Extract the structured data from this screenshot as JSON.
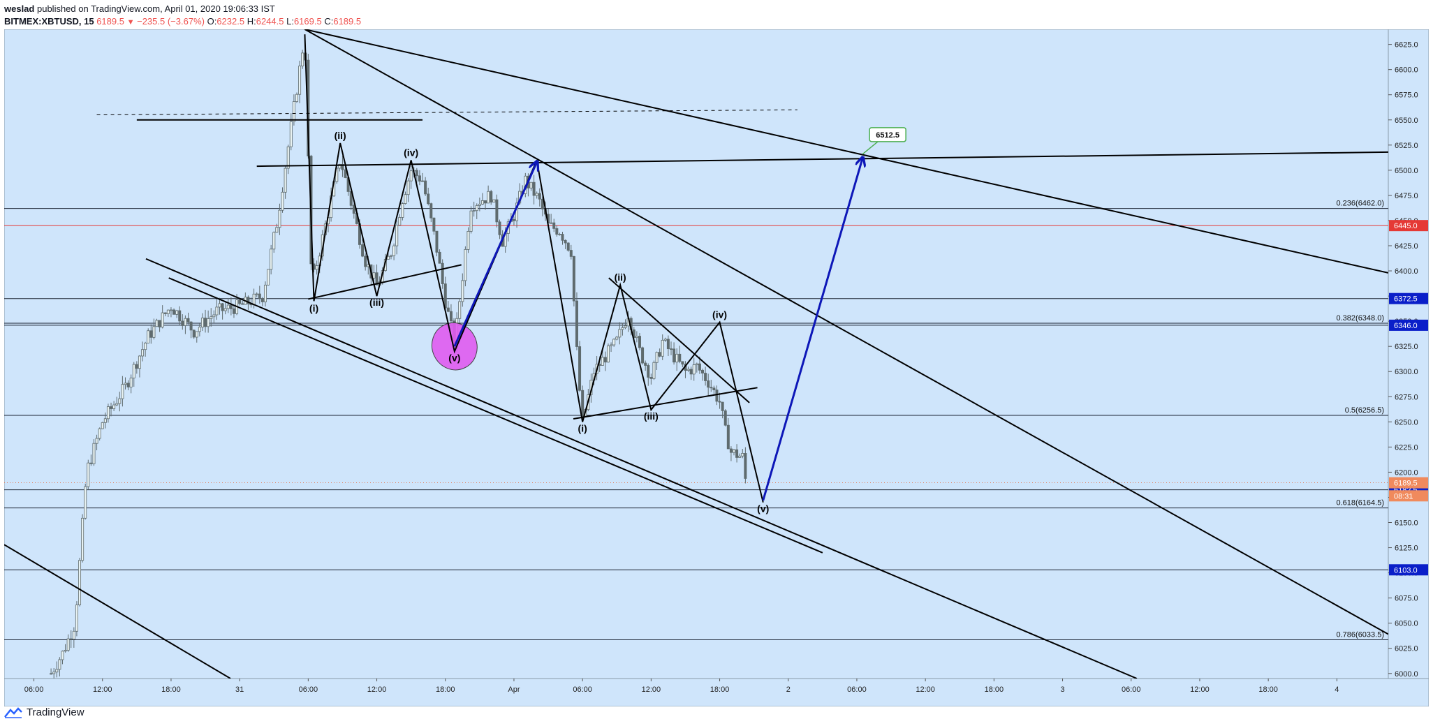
{
  "header": {
    "author": "weslad",
    "published": "published on TradingView.com, April 01, 2020 19:06:33 IST",
    "symbol": "BITMEX:XBTUSD, 15",
    "last": "6189.5",
    "change": "−235.5 (−3.67%)",
    "o_label": "O:",
    "o_val": "6232.5",
    "h_label": "H:",
    "h_val": "6244.5",
    "l_label": "L:",
    "l_val": "6169.5",
    "c_label": "C:",
    "c_val": "6189.5"
  },
  "footer": {
    "brand": "TradingView"
  },
  "colors": {
    "chart_bg": "#cfe5fb",
    "candle": "#5f6b6e",
    "line": "#000000",
    "arrow": "#0d17b8",
    "ellipse": "#e05cf0",
    "badge_blue": "#0a1fc9",
    "badge_red": "#e53935",
    "badge_orange": "#f08a5d",
    "target_label_border": "#4caf50"
  },
  "chart_data": {
    "type": "candlestick",
    "title": "BITMEX:XBTUSD, 15",
    "ylim": [
      5995,
      6640
    ],
    "y_ticks": [
      6000,
      6025,
      6050,
      6075,
      6100,
      6125,
      6150,
      6175,
      6200,
      6225,
      6250,
      6275,
      6300,
      6325,
      6350,
      6375,
      6400,
      6425,
      6450,
      6475,
      6500,
      6525,
      6550,
      6575,
      6600,
      6625
    ],
    "y_tick_labels": [
      "6000.0",
      "6025.0",
      "6050.0",
      "6075.0",
      "6100.0",
      "6125.0",
      "6150.0",
      "6175.0",
      "6200.0",
      "6225.0",
      "6250.0",
      "6275.0",
      "6300.0",
      "6325.0",
      "6350.0",
      "6375.0",
      "6400.0",
      "6425.0",
      "6450.0",
      "6475.0",
      "6500.0",
      "6525.0",
      "6550.0",
      "6575.0",
      "6600.0",
      "6625.0"
    ],
    "x_ticks": [
      "06:00",
      "12:00",
      "18:00",
      "31",
      "06:00",
      "12:00",
      "18:00",
      "Apr",
      "06:00",
      "12:00",
      "18:00",
      "2",
      "06:00",
      "12:00",
      "18:00",
      "3",
      "06:00",
      "12:00",
      "18:00",
      "4"
    ],
    "x_tick_hours": [
      6,
      12,
      18,
      24,
      30,
      36,
      42,
      48,
      54,
      60,
      66,
      72,
      78,
      84,
      90,
      96,
      102,
      108,
      114,
      120
    ],
    "x_range_hours": [
      3.4,
      124.5
    ],
    "price_path": [
      [
        7.5,
        6000
      ],
      [
        8.5,
        6020
      ],
      [
        9.6,
        6050
      ],
      [
        10.6,
        6200
      ],
      [
        12.0,
        6250
      ],
      [
        14.0,
        6285
      ],
      [
        16.0,
        6335
      ],
      [
        18.0,
        6365
      ],
      [
        20.0,
        6340
      ],
      [
        22.0,
        6360
      ],
      [
        24.0,
        6365
      ],
      [
        26.0,
        6375
      ],
      [
        27.3,
        6450
      ],
      [
        28.4,
        6535
      ],
      [
        29.7,
        6635
      ],
      [
        30.3,
        6385
      ],
      [
        31.4,
        6440
      ],
      [
        32.8,
        6512
      ],
      [
        33.7,
        6470
      ],
      [
        35.0,
        6410
      ],
      [
        36.0,
        6385
      ],
      [
        37.3,
        6420
      ],
      [
        38.2,
        6470
      ],
      [
        39.0,
        6500
      ],
      [
        40.0,
        6490
      ],
      [
        41.2,
        6425
      ],
      [
        42.0,
        6370
      ],
      [
        42.8,
        6328
      ],
      [
        43.4,
        6385
      ],
      [
        44.2,
        6465
      ],
      [
        45.0,
        6470
      ],
      [
        46.0,
        6475
      ],
      [
        47.0,
        6430
      ],
      [
        48.0,
        6455
      ],
      [
        49.0,
        6490
      ],
      [
        50.2,
        6470
      ],
      [
        51.0,
        6445
      ],
      [
        52.0,
        6440
      ],
      [
        53.0,
        6420
      ],
      [
        53.6,
        6300
      ],
      [
        54.0,
        6250
      ],
      [
        55.0,
        6300
      ],
      [
        56.0,
        6315
      ],
      [
        57.0,
        6330
      ],
      [
        58.0,
        6358
      ],
      [
        59.0,
        6320
      ],
      [
        60.0,
        6295
      ],
      [
        61.0,
        6330
      ],
      [
        62.0,
        6315
      ],
      [
        63.0,
        6300
      ],
      [
        64.0,
        6305
      ],
      [
        65.0,
        6290
      ],
      [
        66.0,
        6270
      ],
      [
        66.5,
        6240
      ],
      [
        67.0,
        6220
      ],
      [
        68.0,
        6215
      ],
      [
        68.4,
        6180
      ]
    ],
    "horizontal_levels": [
      {
        "price": 6462.0,
        "label": "0.236(6462.0)"
      },
      {
        "price": 6445.0,
        "badge": "6445.0",
        "color": "red"
      },
      {
        "price": 6372.5,
        "badge": "6372.5",
        "color": "blue"
      },
      {
        "price": 6348.0,
        "label": "0.382(6348.0)"
      },
      {
        "price": 6346.0,
        "badge": "6346.0",
        "color": "blue"
      },
      {
        "price": 6256.5,
        "label": "0.5(6256.5)"
      },
      {
        "price": 6182.5,
        "badge": "6182.5",
        "color": "blue"
      },
      {
        "price": 6164.5,
        "label": "0.618(6164.5)"
      },
      {
        "price": 6103.0,
        "badge": "6103.0",
        "color": "blue"
      },
      {
        "price": 6033.5,
        "label": "0.786(6033.5)"
      }
    ],
    "price_badges": [
      {
        "price": 6189.5,
        "text": "6189.5",
        "color": "orange"
      },
      {
        "price": 6176.5,
        "text": "08:31",
        "color": "orange"
      }
    ],
    "wave_labels": [
      {
        "text": "(i)",
        "h": 30.5,
        "p": 6369,
        "below": true
      },
      {
        "text": "(ii)",
        "h": 32.8,
        "p": 6527,
        "below": false
      },
      {
        "text": "(iii)",
        "h": 36.0,
        "p": 6375,
        "below": true
      },
      {
        "text": "(iv)",
        "h": 39.0,
        "p": 6510,
        "below": false
      },
      {
        "text": "(v)",
        "h": 42.8,
        "p": 6320,
        "below": true
      },
      {
        "text": "(i)",
        "h": 54.0,
        "p": 6250,
        "below": true
      },
      {
        "text": "(ii)",
        "h": 57.3,
        "p": 6386,
        "below": false
      },
      {
        "text": "(iii)",
        "h": 60.0,
        "p": 6262,
        "below": true
      },
      {
        "text": "(iv)",
        "h": 66.0,
        "p": 6349,
        "below": false
      },
      {
        "text": "(v)",
        "h": 69.8,
        "p": 6170,
        "below": true
      }
    ],
    "target_label": {
      "text": "6512.5",
      "h": 78.5,
      "p": 6525
    },
    "zigzag_lines": [
      [
        [
          29.7,
          6635
        ],
        [
          30.5,
          6370
        ],
        [
          32.8,
          6527
        ],
        [
          36.0,
          6375
        ],
        [
          39.0,
          6510
        ],
        [
          42.8,
          6320
        ],
        [
          50.0,
          6510
        ]
      ],
      [
        [
          50.0,
          6510
        ],
        [
          54.0,
          6250
        ],
        [
          57.3,
          6386
        ],
        [
          60.0,
          6262
        ],
        [
          66.0,
          6349
        ],
        [
          69.8,
          6170
        ]
      ]
    ],
    "trend_lines": [
      {
        "from": [
          11.5,
          6555
        ],
        "to": [
          72.8,
          6560
        ],
        "dashed": true
      },
      {
        "from": [
          3.4,
          6128
        ],
        "to": [
          23.2,
          5995
        ]
      },
      {
        "from": [
          15.0,
          6550
        ],
        "to": [
          40.0,
          6550
        ]
      },
      {
        "from": [
          15.8,
          6412
        ],
        "to": [
          102.5,
          5995
        ]
      },
      {
        "from": [
          17.8,
          6393
        ],
        "to": [
          75.0,
          6120
        ]
      },
      {
        "from": [
          29.7,
          6640
        ],
        "to": [
          124.5,
          6039
        ]
      },
      {
        "from": [
          29.7,
          6640
        ],
        "to": [
          124.5,
          6398
        ]
      },
      {
        "from": [
          25.5,
          6504
        ],
        "to": [
          124.5,
          6518
        ]
      },
      {
        "from": [
          30.0,
          6372
        ],
        "to": [
          43.4,
          6406
        ]
      },
      {
        "from": [
          53.2,
          6253
        ],
        "to": [
          69.3,
          6284
        ]
      },
      {
        "from": [
          56.3,
          6393
        ],
        "to": [
          68.6,
          6269
        ]
      }
    ],
    "arrows": [
      {
        "from": [
          42.8,
          6325
        ],
        "to": [
          50.0,
          6508
        ]
      },
      {
        "from": [
          69.8,
          6172
        ],
        "to": [
          78.5,
          6512
        ]
      }
    ],
    "ellipse": {
      "h": 42.8,
      "p": 6325
    }
  }
}
